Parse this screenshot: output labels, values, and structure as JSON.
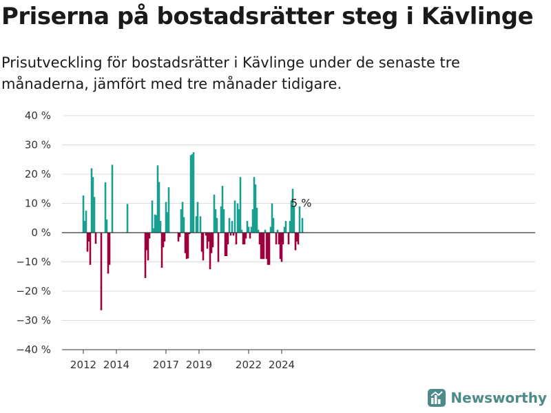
{
  "header": {
    "title": "Priserna på bostadsrätter steg i Kävlinge",
    "subtitle": "Prisutveckling för bostadsrätter i Kävlinge under de senaste tre månaderna, jämfört med tre månader tidigare."
  },
  "brand": {
    "name": "Newsworthy"
  },
  "colors": {
    "positive": "#1a9e91",
    "negative": "#99003d",
    "grid": "#dddddd",
    "brand": "#4e8a87"
  },
  "chart_data": {
    "type": "bar",
    "title": "Priserna på bostadsrätter steg i Kävlinge",
    "subtitle": "Prisutveckling för bostadsrätter i Kävlinge under de senaste tre månaderna, jämfört med tre månader tidigare.",
    "xlabel": "",
    "ylabel": "",
    "x_unit": "month",
    "ylim": [
      -40,
      40
    ],
    "y_ticks": [
      40,
      30,
      20,
      10,
      0,
      -10,
      -20,
      -30,
      -40
    ],
    "y_tick_labels": [
      "40 %",
      "30 %",
      "20 %",
      "10 %",
      "0 %",
      "−10 %",
      "−20 %",
      "−30 %",
      "−40 %"
    ],
    "x_ticks": [
      "2012-01",
      "2014-01",
      "2017-01",
      "2019-01",
      "2022-01",
      "2024-01"
    ],
    "x_tick_labels": [
      "2012",
      "2014",
      "2017",
      "2019",
      "2022",
      "2024"
    ],
    "grid": true,
    "annotation": {
      "date": "2025-04",
      "text": "5 %"
    },
    "data": [
      [
        "2012-01",
        12.7
      ],
      [
        "2012-02",
        4.0
      ],
      [
        "2012-03",
        7.5
      ],
      [
        "2012-04",
        -6.5
      ],
      [
        "2012-05",
        -3.0
      ],
      [
        "2012-06",
        -11.0
      ],
      [
        "2012-07",
        22.0
      ],
      [
        "2012-08",
        19.0
      ],
      [
        "2012-09",
        12.2
      ],
      [
        "2012-10",
        -3.8
      ],
      [
        "2013-02",
        -26.5
      ],
      [
        "2013-05",
        17.2
      ],
      [
        "2013-06",
        4.5
      ],
      [
        "2013-07",
        -14.0
      ],
      [
        "2013-08",
        -11.0
      ],
      [
        "2013-10",
        23.2
      ],
      [
        "2014-09",
        9.8
      ],
      [
        "2015-10",
        -15.5
      ],
      [
        "2015-11",
        -6.0
      ],
      [
        "2015-12",
        -9.5
      ],
      [
        "2016-01",
        -2.0
      ],
      [
        "2016-03",
        11.0
      ],
      [
        "2016-04",
        1.5
      ],
      [
        "2016-05",
        6.2
      ],
      [
        "2016-06",
        6.0
      ],
      [
        "2016-07",
        23.0
      ],
      [
        "2016-08",
        17.3
      ],
      [
        "2016-09",
        4.0
      ],
      [
        "2016-10",
        -12.0
      ],
      [
        "2016-11",
        -5.0
      ],
      [
        "2016-12",
        -3.0
      ],
      [
        "2017-01",
        10.5
      ],
      [
        "2017-02",
        7.0
      ],
      [
        "2017-03",
        15.5
      ],
      [
        "2017-10",
        -3.0
      ],
      [
        "2017-11",
        -1.5
      ],
      [
        "2017-12",
        8.0
      ],
      [
        "2018-01",
        10.5
      ],
      [
        "2018-02",
        5.3
      ],
      [
        "2018-03",
        -7.0
      ],
      [
        "2018-04",
        -9.0
      ],
      [
        "2018-05",
        -8.8
      ],
      [
        "2018-06",
        -0.5
      ],
      [
        "2018-07",
        26.5
      ],
      [
        "2018-08",
        26.8
      ],
      [
        "2018-09",
        27.5
      ],
      [
        "2018-11",
        5.6
      ],
      [
        "2018-12",
        10.5
      ],
      [
        "2019-02",
        5.6
      ],
      [
        "2019-03",
        -6.5
      ],
      [
        "2019-04",
        -9.5
      ],
      [
        "2019-06",
        -1.0
      ],
      [
        "2019-07",
        -5.5
      ],
      [
        "2019-08",
        -3.0
      ],
      [
        "2019-09",
        -12.5
      ],
      [
        "2019-10",
        -7.0
      ],
      [
        "2019-11",
        -5.0
      ],
      [
        "2019-12",
        13.0
      ],
      [
        "2020-01",
        8.0
      ],
      [
        "2020-02",
        5.0
      ],
      [
        "2020-03",
        -10.0
      ],
      [
        "2020-05",
        9.0
      ],
      [
        "2020-06",
        16.0
      ],
      [
        "2020-07",
        8.0
      ],
      [
        "2020-08",
        -8.0
      ],
      [
        "2020-09",
        -8.0
      ],
      [
        "2020-10",
        -4.0
      ],
      [
        "2020-11",
        5.0
      ],
      [
        "2020-12",
        -1.0
      ],
      [
        "2021-01",
        4.0
      ],
      [
        "2021-02",
        -1.0
      ],
      [
        "2021-03",
        11.0
      ],
      [
        "2021-04",
        -4.0
      ],
      [
        "2021-05",
        10.0
      ],
      [
        "2021-06",
        8.0
      ],
      [
        "2021-07",
        19.0
      ],
      [
        "2021-08",
        1.0
      ],
      [
        "2021-09",
        -4.0
      ],
      [
        "2021-10",
        -4.0
      ],
      [
        "2021-11",
        -2.0
      ],
      [
        "2021-12",
        4.0
      ],
      [
        "2022-01",
        2.0
      ],
      [
        "2022-02",
        -2.0
      ],
      [
        "2022-03",
        2.0
      ],
      [
        "2022-04",
        8.0
      ],
      [
        "2022-05",
        19.0
      ],
      [
        "2022-06",
        16.5
      ],
      [
        "2022-07",
        8.5
      ],
      [
        "2022-08",
        1.0
      ],
      [
        "2022-09",
        -4.0
      ],
      [
        "2022-10",
        -9.0
      ],
      [
        "2022-11",
        -9.0
      ],
      [
        "2022-12",
        -9.0
      ],
      [
        "2023-01",
        1.0
      ],
      [
        "2023-02",
        -9.0
      ],
      [
        "2023-03",
        -11.0
      ],
      [
        "2023-04",
        -11.0
      ],
      [
        "2023-05",
        2.0
      ],
      [
        "2023-06",
        10.0
      ],
      [
        "2023-07",
        5.0
      ],
      [
        "2023-09",
        -4.0
      ],
      [
        "2023-10",
        1.0
      ],
      [
        "2023-11",
        -4.0
      ],
      [
        "2023-12",
        -9.0
      ],
      [
        "2024-01",
        -10.0
      ],
      [
        "2024-02",
        -4.0
      ],
      [
        "2024-03",
        2.0
      ],
      [
        "2024-04",
        4.0
      ],
      [
        "2024-06",
        -4.0
      ],
      [
        "2024-07",
        4.0
      ],
      [
        "2024-08",
        11.0
      ],
      [
        "2024-09",
        15.0
      ],
      [
        "2024-10",
        9.0
      ],
      [
        "2024-11",
        -6.0
      ],
      [
        "2024-12",
        -3.0
      ],
      [
        "2025-01",
        -4.0
      ],
      [
        "2025-02",
        9.0
      ],
      [
        "2025-04",
        5.0
      ]
    ]
  }
}
